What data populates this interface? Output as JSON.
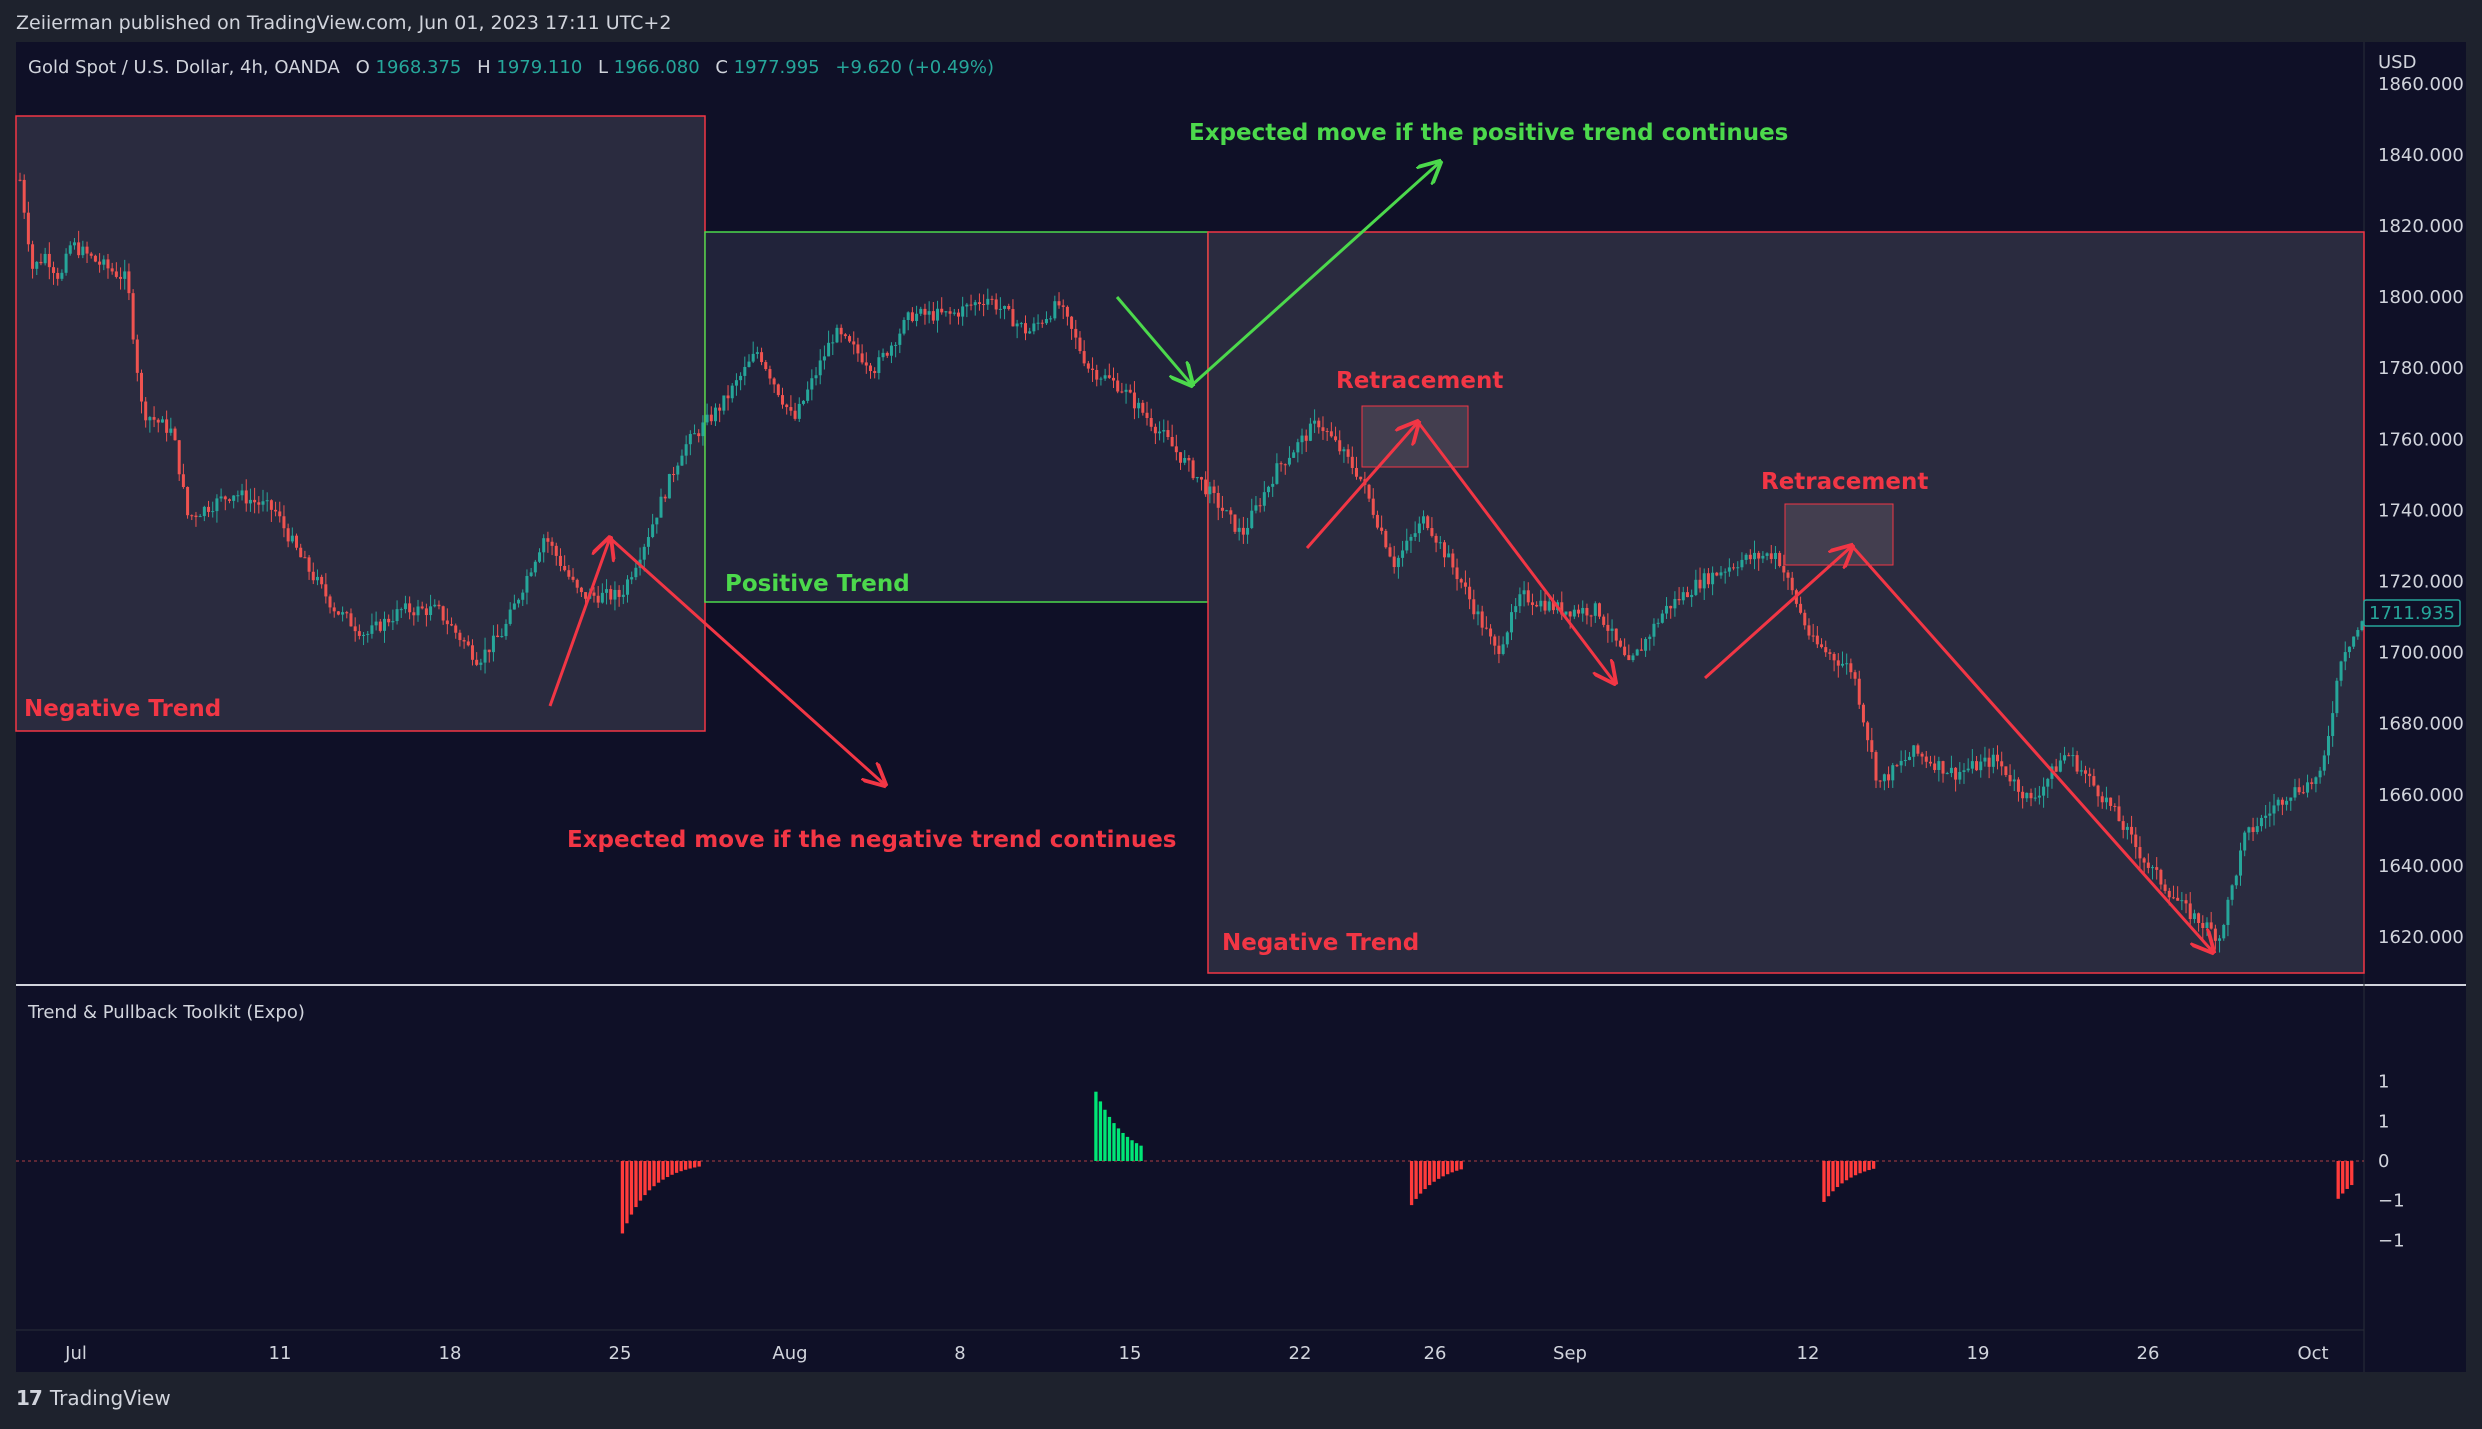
{
  "header": {
    "published_text": "Zeiierman published on TradingView.com, Jun 01, 2023 17:11 UTC+2",
    "symbol": "Gold Spot / U.S. Dollar, 4h, OANDA",
    "ohlc": {
      "o_label": "O",
      "o": "1968.375",
      "h_label": "H",
      "h": "1979.110",
      "l_label": "L",
      "l": "1966.080",
      "c_label": "C",
      "c": "1977.995",
      "change": "+9.620 (+0.49%)"
    },
    "currency": "USD"
  },
  "footer": {
    "brand": "TradingView",
    "logo_glyph": "17"
  },
  "colors": {
    "background": "#0f1027",
    "up": "#26a69a",
    "down": "#ef5350",
    "annotation_red": "#f23645",
    "annotation_green": "#4cd94c",
    "hist_up": "#00e676",
    "hist_down": "#ff3b3b"
  },
  "chart_data": [
    {
      "type": "candlestick",
      "title": "Gold Spot / U.S. Dollar, 4h, OANDA",
      "ylim": [
        1610,
        1862
      ],
      "y_ticks": [
        "1860.000",
        "1840.000",
        "1820.000",
        "1800.000",
        "1780.000",
        "1760.000",
        "1740.000",
        "1720.000",
        "1700.000",
        "1680.000",
        "1660.000",
        "1640.000",
        "1620.000"
      ],
      "last_price": "1711.935",
      "x_ticks": [
        "Jul",
        "11",
        "18",
        "25",
        "Aug",
        "8",
        "15",
        "22",
        "26",
        "Sep",
        "12",
        "19",
        "26",
        "Oct"
      ],
      "price_path": [
        {
          "t": 0,
          "v": 1833
        },
        {
          "t": 0.25,
          "v": 1808
        },
        {
          "t": 0.5,
          "v": 1812
        },
        {
          "t": 0.8,
          "v": 1805
        },
        {
          "t": 1.0,
          "v": 1815
        },
        {
          "t": 1.5,
          "v": 1810
        },
        {
          "t": 2.1,
          "v": 1805
        },
        {
          "t": 2.4,
          "v": 1768
        },
        {
          "t": 3.0,
          "v": 1762
        },
        {
          "t": 3.3,
          "v": 1738
        },
        {
          "t": 4.2,
          "v": 1745
        },
        {
          "t": 5.0,
          "v": 1740
        },
        {
          "t": 5.5,
          "v": 1727
        },
        {
          "t": 6.2,
          "v": 1712
        },
        {
          "t": 6.8,
          "v": 1705
        },
        {
          "t": 7.5,
          "v": 1712
        },
        {
          "t": 8.2,
          "v": 1712
        },
        {
          "t": 9.0,
          "v": 1698
        },
        {
          "t": 9.5,
          "v": 1706
        },
        {
          "t": 10.3,
          "v": 1733
        },
        {
          "t": 11.0,
          "v": 1716
        },
        {
          "t": 11.8,
          "v": 1716
        },
        {
          "t": 12.3,
          "v": 1732
        },
        {
          "t": 13.0,
          "v": 1757
        },
        {
          "t": 13.8,
          "v": 1770
        },
        {
          "t": 14.5,
          "v": 1785
        },
        {
          "t": 15.2,
          "v": 1765
        },
        {
          "t": 16.0,
          "v": 1790
        },
        {
          "t": 16.8,
          "v": 1780
        },
        {
          "t": 17.5,
          "v": 1795
        },
        {
          "t": 18.3,
          "v": 1795
        },
        {
          "t": 19.0,
          "v": 1800
        },
        {
          "t": 19.8,
          "v": 1790
        },
        {
          "t": 20.4,
          "v": 1798
        },
        {
          "t": 21.0,
          "v": 1780
        },
        {
          "t": 21.6,
          "v": 1775
        },
        {
          "t": 22.4,
          "v": 1762
        },
        {
          "t": 23.2,
          "v": 1748
        },
        {
          "t": 24.0,
          "v": 1733
        },
        {
          "t": 24.7,
          "v": 1752
        },
        {
          "t": 25.5,
          "v": 1765
        },
        {
          "t": 26.3,
          "v": 1750
        },
        {
          "t": 27.0,
          "v": 1725
        },
        {
          "t": 27.6,
          "v": 1738
        },
        {
          "t": 28.3,
          "v": 1720
        },
        {
          "t": 29.0,
          "v": 1700
        },
        {
          "t": 29.5,
          "v": 1716
        },
        {
          "t": 30.3,
          "v": 1712
        },
        {
          "t": 31.0,
          "v": 1712
        },
        {
          "t": 31.6,
          "v": 1696
        },
        {
          "t": 32.3,
          "v": 1712
        },
        {
          "t": 33.0,
          "v": 1720
        },
        {
          "t": 33.8,
          "v": 1726
        },
        {
          "t": 34.5,
          "v": 1728
        },
        {
          "t": 35.2,
          "v": 1703
        },
        {
          "t": 36.0,
          "v": 1695
        },
        {
          "t": 36.5,
          "v": 1663
        },
        {
          "t": 37.2,
          "v": 1672
        },
        {
          "t": 38.0,
          "v": 1666
        },
        {
          "t": 38.8,
          "v": 1670
        },
        {
          "t": 39.5,
          "v": 1658
        },
        {
          "t": 40.2,
          "v": 1672
        },
        {
          "t": 41.0,
          "v": 1658
        },
        {
          "t": 41.8,
          "v": 1640
        },
        {
          "t": 42.5,
          "v": 1628
        },
        {
          "t": 43.2,
          "v": 1620
        },
        {
          "t": 43.7,
          "v": 1648
        },
        {
          "t": 44.5,
          "v": 1660
        },
        {
          "t": 45.2,
          "v": 1665
        },
        {
          "t": 45.6,
          "v": 1700
        },
        {
          "t": 46.0,
          "v": 1708
        }
      ],
      "annotations": {
        "neg_trend_label_1": "Negative Trend",
        "pos_trend_label": "Positive Trend",
        "neg_trend_label_2": "Negative Trend",
        "expected_negative": "Expected move if the negative trend continues",
        "expected_positive": "Expected move if the positive trend continues",
        "retracement_1": "Retracement",
        "retracement_2": "Retracement"
      }
    },
    {
      "type": "bar",
      "title": "Trend & Pullback Toolkit (Expo)",
      "y_ticks": [
        "1",
        "1",
        "0",
        "−1",
        "−1"
      ],
      "ylim": [
        -1.15,
        1.15
      ],
      "bursts": [
        {
          "start_t": 11.8,
          "count": 18,
          "peak": -1.15,
          "sign": "down"
        },
        {
          "start_t": 21.1,
          "count": 11,
          "peak": 1.1,
          "sign": "up"
        },
        {
          "start_t": 27.3,
          "count": 12,
          "peak": -0.7,
          "sign": "down"
        },
        {
          "start_t": 35.4,
          "count": 12,
          "peak": -0.65,
          "sign": "down"
        },
        {
          "start_t": 45.5,
          "count": 4,
          "peak": -0.6,
          "sign": "down"
        }
      ]
    }
  ]
}
